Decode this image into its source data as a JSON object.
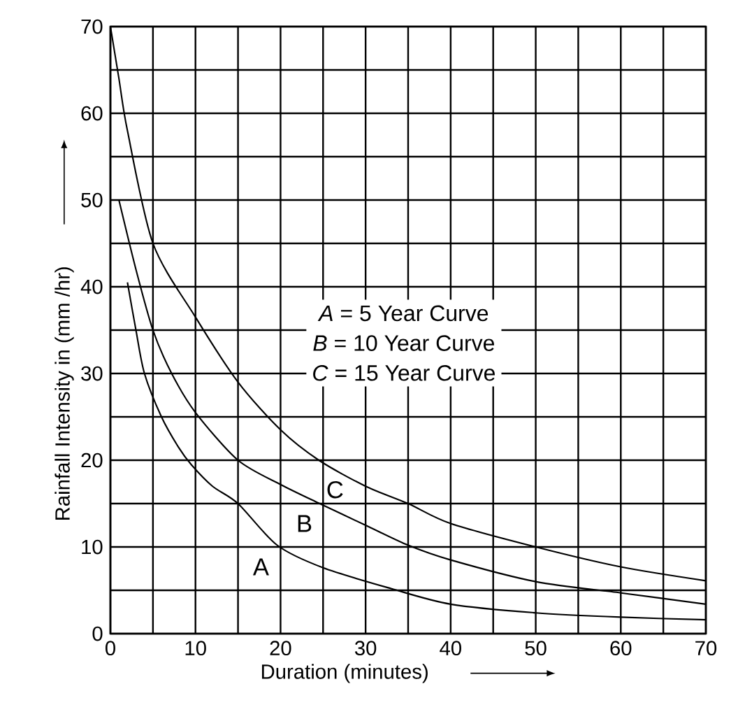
{
  "chart_data": {
    "type": "line",
    "xlabel": "Duration (minutes)",
    "ylabel": "Rainfall Intensity in (mm /hr)",
    "xlim": [
      0,
      70
    ],
    "ylim": [
      0,
      70
    ],
    "xticks": [
      0,
      10,
      20,
      30,
      40,
      50,
      60,
      70
    ],
    "yticks": [
      0,
      10,
      20,
      30,
      40,
      50,
      60,
      70
    ],
    "grid": true,
    "series": [
      {
        "color": "#000000",
        "x": [
          2,
          3,
          4,
          6,
          8,
          9.5,
          12,
          15,
          19.6,
          25,
          33,
          40,
          50,
          60,
          70
        ],
        "values": [
          40.5,
          35,
          30,
          25,
          21.5,
          19.5,
          17,
          15,
          10.2,
          7.6,
          5.2,
          3.4,
          2.4,
          1.9,
          1.6
        ]
      },
      {
        "color": "#000000",
        "x": [
          1,
          3,
          5,
          7.2,
          10,
          15,
          20,
          24.6,
          30,
          35,
          40,
          50,
          60,
          70
        ],
        "values": [
          50,
          42,
          35,
          30,
          25.5,
          20,
          17.2,
          15,
          12.5,
          10.2,
          8.5,
          6,
          4.7,
          3.4
        ]
      },
      {
        "color": "#000000",
        "x": [
          0,
          1,
          2,
          5,
          10,
          15,
          20,
          24.5,
          30,
          35,
          40,
          50,
          60,
          70
        ],
        "values": [
          70,
          64,
          58,
          45,
          36.5,
          29,
          23.5,
          20,
          17,
          15,
          12.7,
          10,
          7.7,
          6.1
        ]
      }
    ],
    "annotations": [
      {
        "text": "A",
        "x": 17.7,
        "y": 7.7
      },
      {
        "text": "B",
        "x": 22.8,
        "y": 12.7
      },
      {
        "text": "C",
        "x": 26.4,
        "y": 16.6
      },
      "*A* = 5 Year Curve",
      "*B* = 10 Year Curve",
      "*C* = 15 Year Curve"
    ]
  }
}
